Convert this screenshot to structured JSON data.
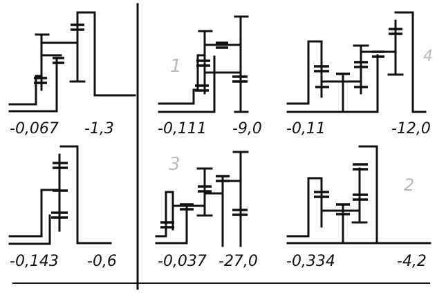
{
  "figure": {
    "colors": {
      "ink": "#111111",
      "pencil": "#b9b9b9",
      "paper": "#ffffff"
    },
    "panels": [
      {
        "id": "p1",
        "left_value": "-0,067",
        "right_value": "-1,3",
        "tag": ""
      },
      {
        "id": "p2",
        "left_value": "-0,111",
        "right_value": "-9,0",
        "tag": "1"
      },
      {
        "id": "p3",
        "left_value": "-0,11",
        "right_value": "-12,0",
        "tag": "4"
      },
      {
        "id": "p4",
        "left_value": "-0,143",
        "right_value": "-0,6",
        "tag": ""
      },
      {
        "id": "p5",
        "left_value": "-0,037",
        "right_value": "-27,0",
        "tag": "3"
      },
      {
        "id": "p6",
        "left_value": "-0,334",
        "right_value": "-4,2",
        "tag": "2"
      }
    ]
  }
}
